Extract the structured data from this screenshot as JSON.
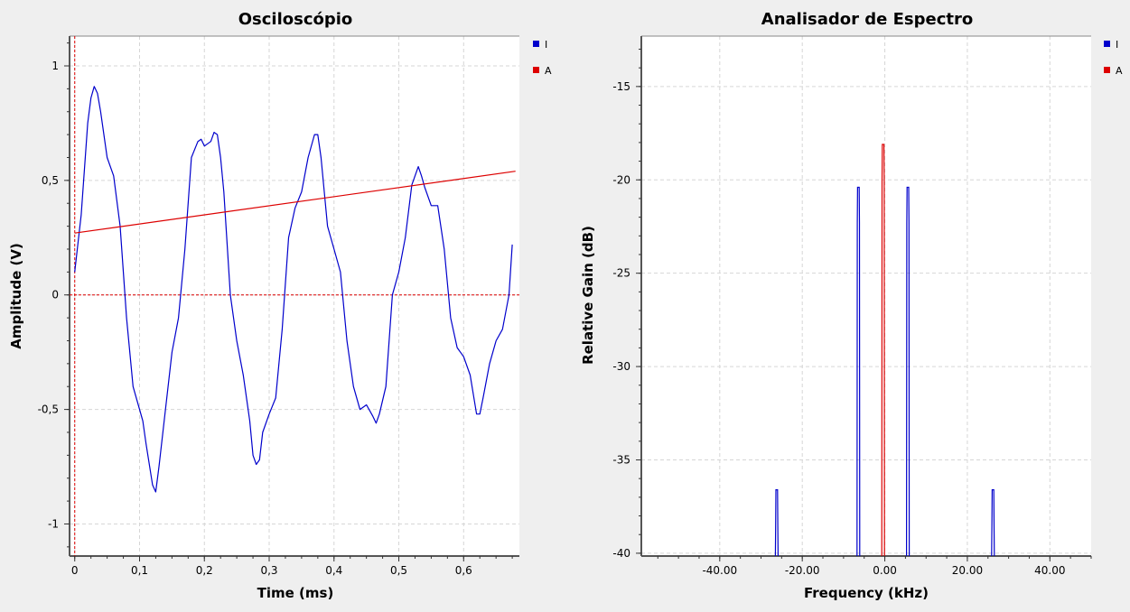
{
  "colors": {
    "I": "#0000cc",
    "A": "#dd0000",
    "background": "#efefef",
    "plot_bg": "#ffffff"
  },
  "chart_data": [
    {
      "type": "line",
      "title": "Osciloscópio",
      "xlabel": "Time (ms)",
      "ylabel": "Amplitude (V)",
      "xlim": [
        -0.008,
        0.686
      ],
      "ylim": [
        -1.14,
        1.13
      ],
      "xticks": [
        0,
        0.1,
        0.2,
        0.3,
        0.4,
        0.5,
        0.6
      ],
      "xticklabels": [
        "0",
        "0,1",
        "0,2",
        "0,3",
        "0,4",
        "0,5",
        "0,6"
      ],
      "yticks": [
        -1,
        -0.5,
        0,
        0.5,
        1
      ],
      "yticklabels": [
        "-1",
        "-0,5",
        "0",
        "0,5",
        "1"
      ],
      "grid": true,
      "legend": "top-right",
      "trigger_time": 0,
      "trigger_level": 0,
      "series": [
        {
          "name": "I",
          "color": "#0000cc",
          "x": [
            0,
            0.01,
            0.02,
            0.025,
            0.03,
            0.035,
            0.04,
            0.05,
            0.06,
            0.07,
            0.08,
            0.09,
            0.1,
            0.105,
            0.11,
            0.12,
            0.125,
            0.13,
            0.14,
            0.15,
            0.16,
            0.17,
            0.18,
            0.19,
            0.195,
            0.2,
            0.21,
            0.215,
            0.22,
            0.225,
            0.23,
            0.24,
            0.25,
            0.26,
            0.27,
            0.275,
            0.28,
            0.285,
            0.29,
            0.3,
            0.31,
            0.32,
            0.33,
            0.34,
            0.35,
            0.36,
            0.37,
            0.375,
            0.38,
            0.39,
            0.4,
            0.41,
            0.42,
            0.43,
            0.44,
            0.45,
            0.46,
            0.465,
            0.47,
            0.48,
            0.49,
            0.5,
            0.51,
            0.52,
            0.53,
            0.535,
            0.54,
            0.55,
            0.56,
            0.57,
            0.58,
            0.59,
            0.6,
            0.61,
            0.62,
            0.625,
            0.63,
            0.64,
            0.65,
            0.66,
            0.67,
            0.675
          ],
          "y": [
            0.1,
            0.35,
            0.75,
            0.86,
            0.91,
            0.88,
            0.8,
            0.6,
            0.52,
            0.3,
            -0.1,
            -0.4,
            -0.5,
            -0.55,
            -0.65,
            -0.83,
            -0.86,
            -0.75,
            -0.5,
            -0.25,
            -0.1,
            0.2,
            0.6,
            0.67,
            0.68,
            0.65,
            0.67,
            0.71,
            0.7,
            0.6,
            0.45,
            0.0,
            -0.2,
            -0.35,
            -0.55,
            -0.7,
            -0.74,
            -0.72,
            -0.6,
            -0.52,
            -0.45,
            -0.15,
            0.25,
            0.38,
            0.45,
            0.6,
            0.7,
            0.7,
            0.6,
            0.3,
            0.2,
            0.1,
            -0.2,
            -0.4,
            -0.5,
            -0.48,
            -0.53,
            -0.56,
            -0.52,
            -0.4,
            0.0,
            0.1,
            0.25,
            0.48,
            0.56,
            0.52,
            0.47,
            0.39,
            0.39,
            0.2,
            -0.1,
            -0.23,
            -0.27,
            -0.35,
            -0.52,
            -0.52,
            -0.45,
            -0.3,
            -0.2,
            -0.15,
            0.0,
            0.22
          ]
        },
        {
          "name": "A",
          "color": "#dd0000",
          "x": [
            0,
            0.68
          ],
          "y": [
            0.27,
            0.54
          ]
        }
      ]
    },
    {
      "type": "line",
      "title": "Analisador de Espectro",
      "xlabel": "Frequency (kHz)",
      "ylabel": "Relative Gain (dB)",
      "xlim": [
        -59,
        50
      ],
      "ylim": [
        -40.15,
        -12.3
      ],
      "xticks": [
        -40,
        -20,
        0,
        20,
        40
      ],
      "xticklabels": [
        "-40.00",
        "-20.00",
        "0.00",
        "20.00",
        "40.00"
      ],
      "yticks": [
        -40,
        -35,
        -30,
        -25,
        -20,
        -15
      ],
      "yticklabels": [
        "-40",
        "-35",
        "-30",
        "-25",
        "-20",
        "-15"
      ],
      "grid": true,
      "legend": "top-right",
      "series": [
        {
          "name": "I",
          "color": "#0000cc",
          "peaks": [
            {
              "freq": -26.2,
              "level": -36.6
            },
            {
              "freq": -6.4,
              "level": -20.4
            },
            {
              "freq": 5.6,
              "level": -20.4
            },
            {
              "freq": 26.2,
              "level": -36.6
            }
          ]
        },
        {
          "name": "A",
          "color": "#dd0000",
          "peaks": [
            {
              "freq": -0.4,
              "level": -18.1
            }
          ]
        }
      ]
    }
  ]
}
